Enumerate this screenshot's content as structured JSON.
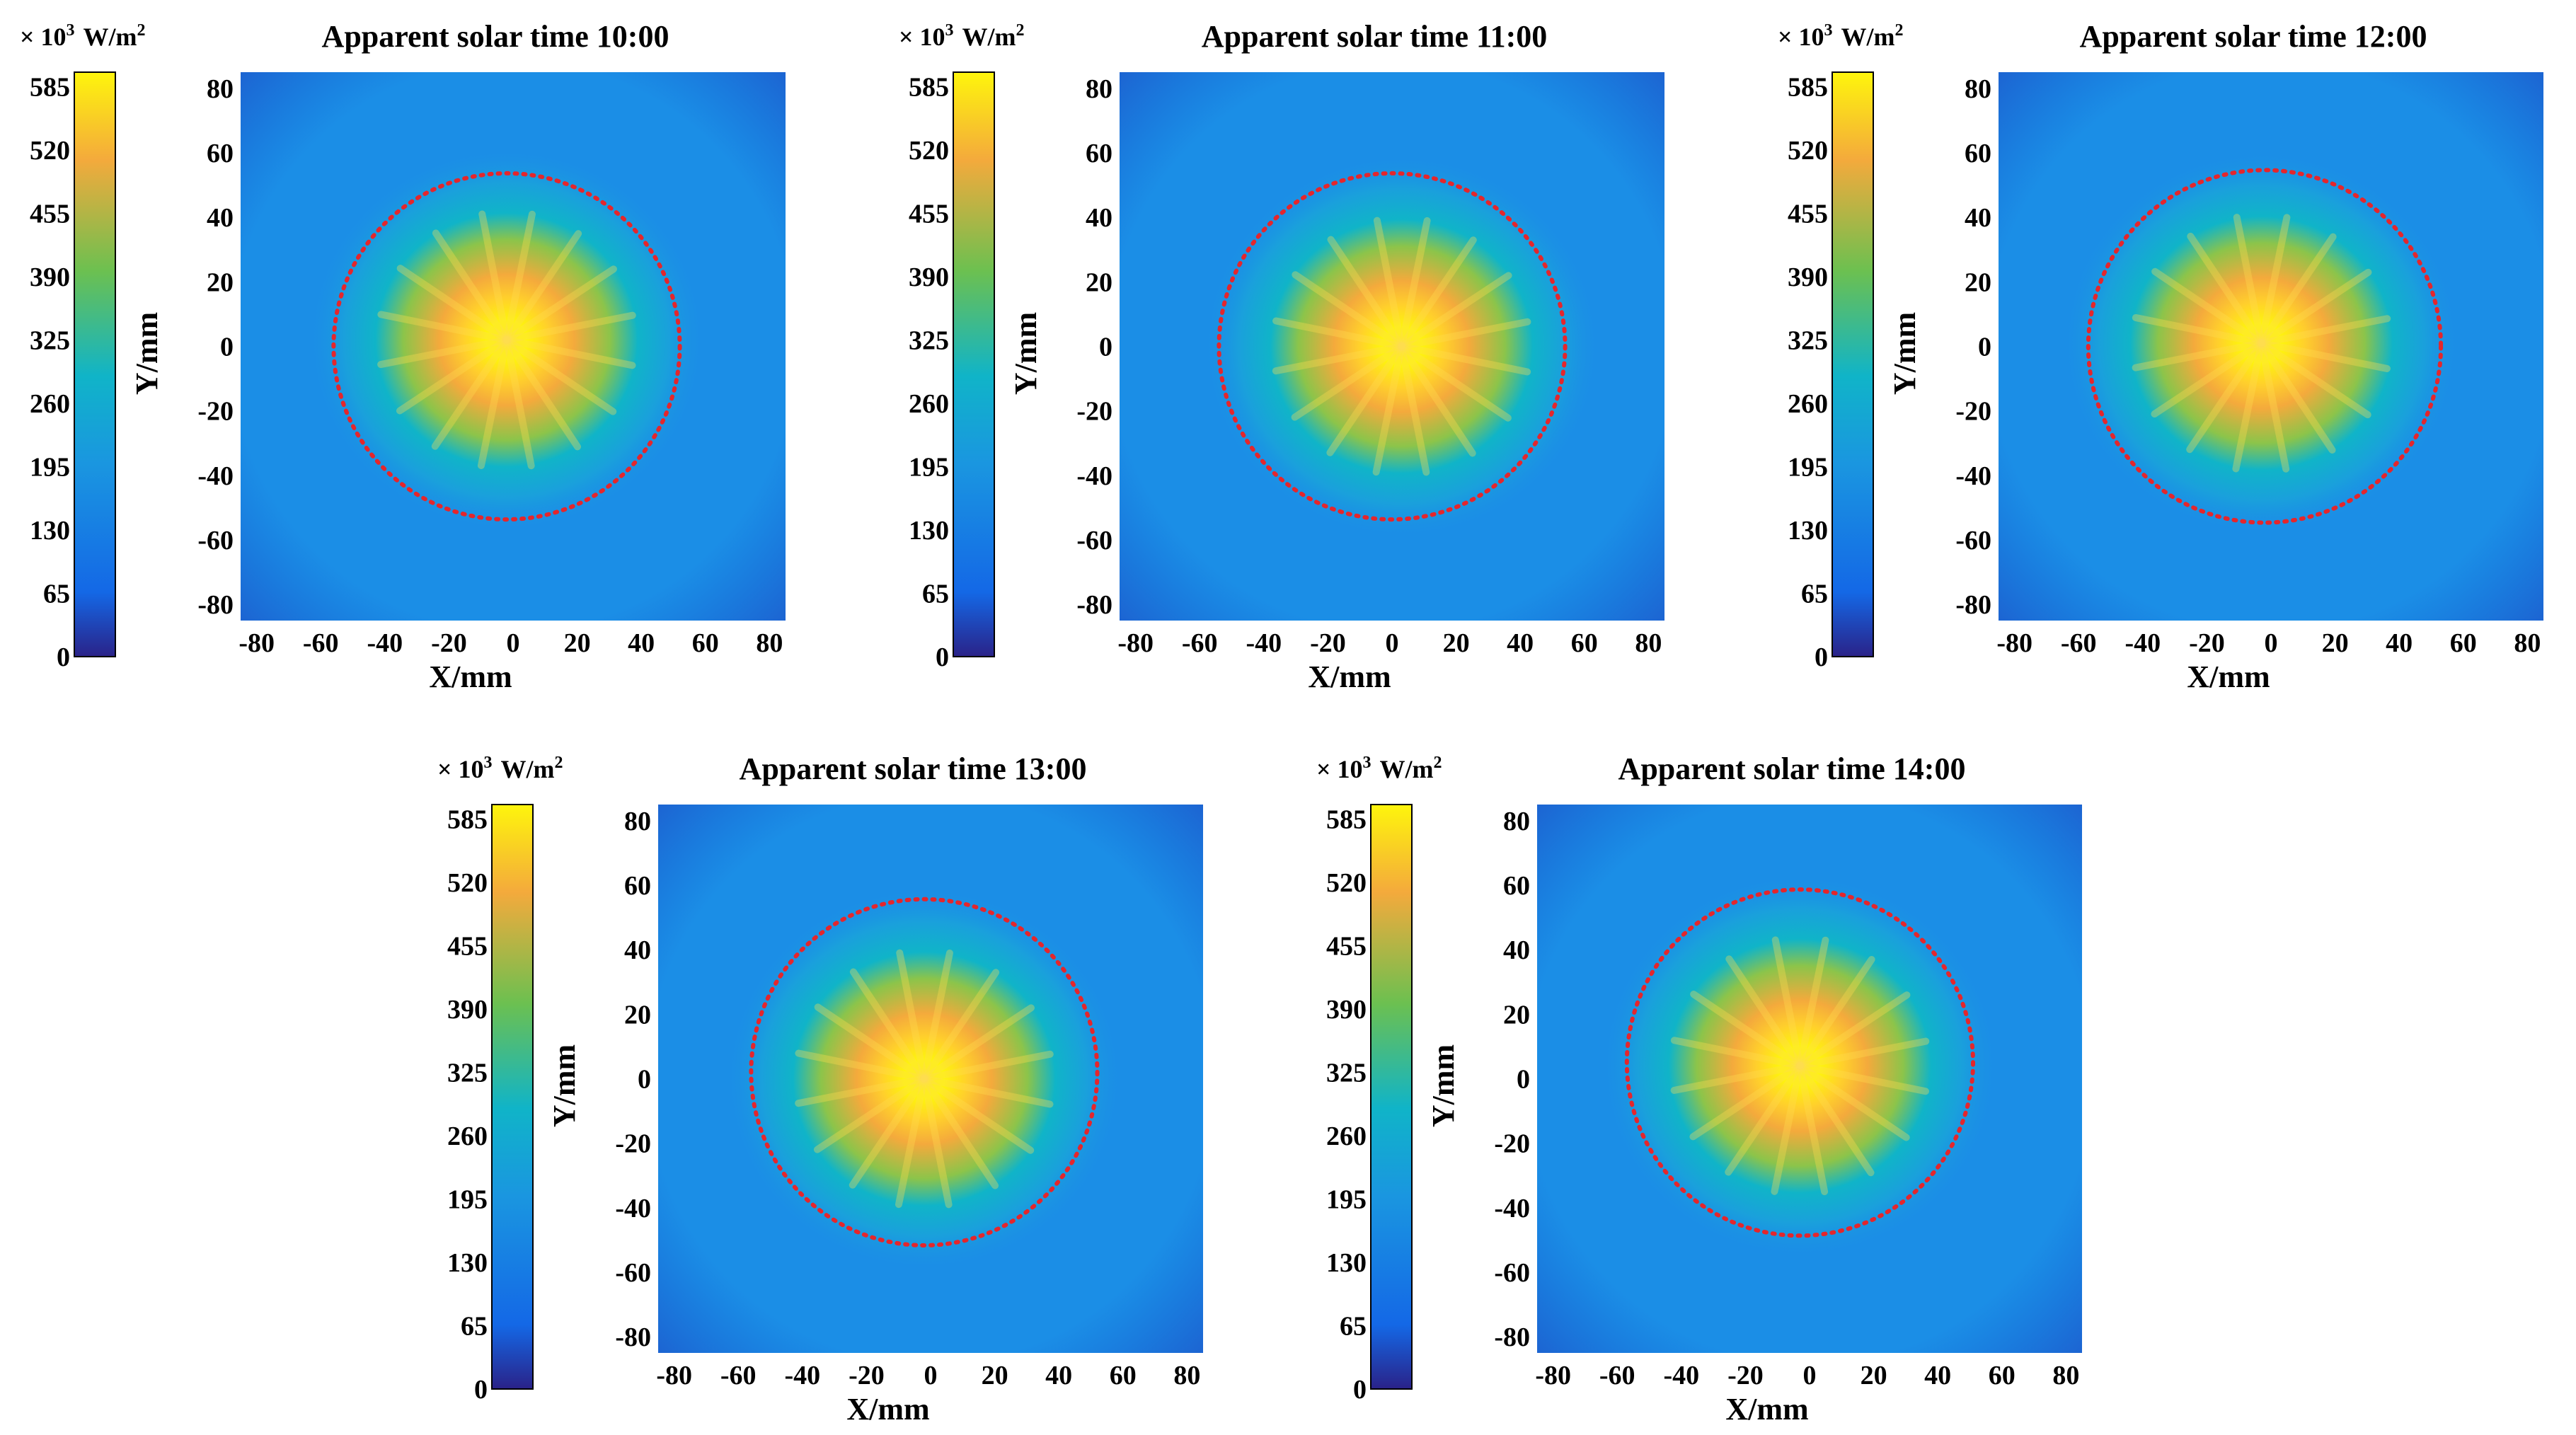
{
  "colors": {
    "dark": "#2a2288",
    "blue": "#1468e6",
    "cyan": "#10b4c8",
    "green": "#6cc050",
    "orange": "#f4aa3c",
    "yellow": "#fef50c",
    "ring": "#e4262c",
    "background_field": "#1b8ee6"
  },
  "chart_data": [
    {
      "type": "heatmap",
      "title": "Apparent solar time 10:00",
      "xlabel": "X/mm",
      "ylabel": "Y/mm",
      "xlim": [
        -85,
        85
      ],
      "ylim": [
        -85,
        85
      ],
      "xticks": [
        -80,
        -60,
        -40,
        -20,
        0,
        20,
        40,
        60,
        80
      ],
      "yticks": [
        80,
        60,
        40,
        20,
        0,
        -20,
        -40,
        -60,
        -80
      ],
      "colorbar": {
        "unit_prefix": "× 10",
        "unit_exp": "3",
        "unit_main": "W/m",
        "unit_sup": "2",
        "ticks": [
          585,
          520,
          455,
          390,
          325,
          260,
          195,
          130,
          65,
          0
        ],
        "range": [
          0,
          600
        ]
      },
      "peak_center_mm": [
        -2,
        2
      ],
      "ring": {
        "center_mm": [
          -2,
          0
        ],
        "radius_mm": 54
      }
    },
    {
      "type": "heatmap",
      "title": "Apparent solar time 11:00",
      "xlabel": "X/mm",
      "ylabel": "Y/mm",
      "xlim": [
        -85,
        85
      ],
      "ylim": [
        -85,
        85
      ],
      "xticks": [
        -80,
        -60,
        -40,
        -20,
        0,
        20,
        40,
        60,
        80
      ],
      "yticks": [
        80,
        60,
        40,
        20,
        0,
        -20,
        -40,
        -60,
        -80
      ],
      "colorbar": {
        "unit_prefix": "× 10",
        "unit_exp": "3",
        "unit_main": "W/m",
        "unit_sup": "2",
        "ticks": [
          585,
          520,
          455,
          390,
          325,
          260,
          195,
          130,
          65,
          0
        ],
        "range": [
          0,
          600
        ]
      },
      "peak_center_mm": [
        3,
        0
      ],
      "ring": {
        "center_mm": [
          0,
          0
        ],
        "radius_mm": 54
      }
    },
    {
      "type": "heatmap",
      "title": "Apparent solar time 12:00",
      "xlabel": "X/mm",
      "ylabel": "Y/mm",
      "xlim": [
        -85,
        85
      ],
      "ylim": [
        -85,
        85
      ],
      "xticks": [
        -80,
        -60,
        -40,
        -20,
        0,
        20,
        40,
        60,
        80
      ],
      "yticks": [
        80,
        60,
        40,
        20,
        0,
        -20,
        -40,
        -60,
        -80
      ],
      "colorbar": {
        "unit_prefix": "× 10",
        "unit_exp": "3",
        "unit_main": "W/m",
        "unit_sup": "2",
        "ticks": [
          585,
          520,
          455,
          390,
          325,
          260,
          195,
          130,
          65,
          0
        ],
        "range": [
          0,
          600
        ]
      },
      "peak_center_mm": [
        -3,
        1
      ],
      "ring": {
        "center_mm": [
          -2,
          0
        ],
        "radius_mm": 55
      }
    },
    {
      "type": "heatmap",
      "title": "Apparent solar time 13:00",
      "xlabel": "X/mm",
      "ylabel": "Y/mm",
      "xlim": [
        -85,
        85
      ],
      "ylim": [
        -85,
        85
      ],
      "xticks": [
        -80,
        -60,
        -40,
        -20,
        0,
        20,
        40,
        60,
        80
      ],
      "yticks": [
        80,
        60,
        40,
        20,
        0,
        -20,
        -40,
        -60,
        -80
      ],
      "colorbar": {
        "unit_prefix": "× 10",
        "unit_exp": "3",
        "unit_main": "W/m",
        "unit_sup": "2",
        "ticks": [
          585,
          520,
          455,
          390,
          325,
          260,
          195,
          130,
          65,
          0
        ],
        "range": [
          0,
          600
        ]
      },
      "peak_center_mm": [
        -2,
        0
      ],
      "ring": {
        "center_mm": [
          -2,
          2
        ],
        "radius_mm": 54
      }
    },
    {
      "type": "heatmap",
      "title": "Apparent solar time 14:00",
      "xlabel": "X/mm",
      "ylabel": "Y/mm",
      "xlim": [
        -85,
        85
      ],
      "ylim": [
        -85,
        85
      ],
      "xticks": [
        -80,
        -60,
        -40,
        -20,
        0,
        20,
        40,
        60,
        80
      ],
      "yticks": [
        80,
        60,
        40,
        20,
        0,
        -20,
        -40,
        -60,
        -80
      ],
      "colorbar": {
        "unit_prefix": "× 10",
        "unit_exp": "3",
        "unit_main": "W/m",
        "unit_sup": "2",
        "ticks": [
          585,
          520,
          455,
          390,
          325,
          260,
          195,
          130,
          65,
          0
        ],
        "range": [
          0,
          600
        ]
      },
      "peak_center_mm": [
        -3,
        4
      ],
      "ring": {
        "center_mm": [
          -3,
          5
        ],
        "radius_mm": 54
      }
    }
  ]
}
